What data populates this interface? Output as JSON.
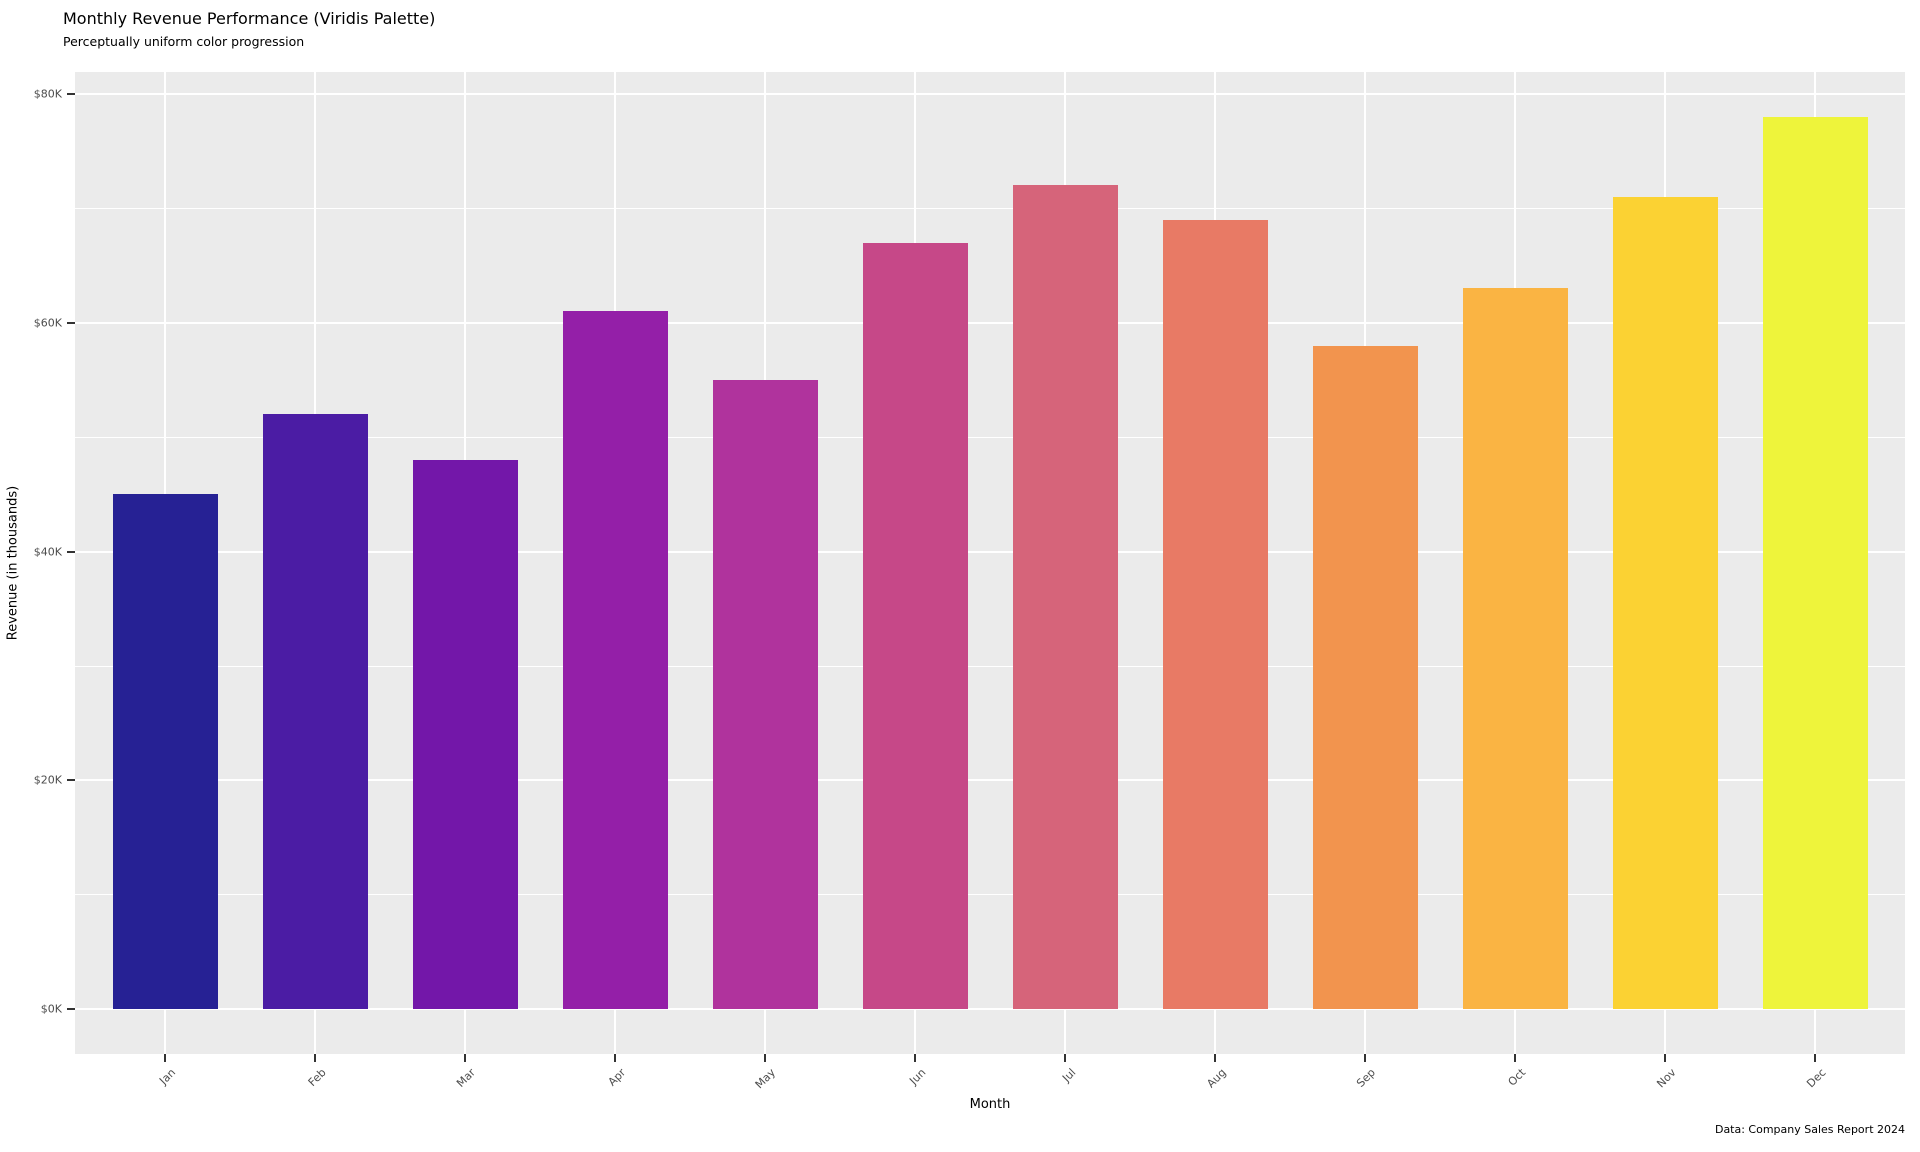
{
  "page": {
    "background": "#ffffff"
  },
  "chart_data": {
    "type": "bar",
    "title": "Monthly Revenue Performance (Viridis Palette)",
    "subtitle": "Perceptually uniform color progression",
    "caption": "Data: Company Sales Report 2024",
    "xlabel": "Month",
    "ylabel": "Revenue (in thousands)",
    "categories": [
      "Jan",
      "Feb",
      "Mar",
      "Apr",
      "May",
      "Jun",
      "Jul",
      "Aug",
      "Sep",
      "Oct",
      "Nov",
      "Dec"
    ],
    "values": [
      45,
      52,
      48,
      61,
      55,
      67,
      72,
      69,
      58,
      63,
      71,
      78
    ],
    "values_unit": "thousands of dollars",
    "bar_colors": [
      "#262194",
      "#4B1CA4",
      "#7317A9",
      "#941FA8",
      "#B0339D",
      "#C64888",
      "#D6647A",
      "#E87A65",
      "#F2944E",
      "#FAB443",
      "#FBD233",
      "#EEF43B"
    ],
    "y_ticks": [
      {
        "value": 0,
        "label": "$0K"
      },
      {
        "value": 20,
        "label": "$20K"
      },
      {
        "value": 40,
        "label": "$40K"
      },
      {
        "value": 60,
        "label": "$60K"
      },
      {
        "value": 80,
        "label": "$80K"
      }
    ],
    "y_minor_ticks": [
      10,
      30,
      50,
      70
    ],
    "ylim": [
      -3.9,
      81.9
    ],
    "legend": "none",
    "grid": {
      "panel_bg": "#EBEBEB",
      "major_color": "#ffffff",
      "minor_color": "#ffffff"
    },
    "text_colors": {
      "tick_label": "#4d4d4d",
      "axis_title": "#000000",
      "tick_mark": "#333333"
    }
  }
}
